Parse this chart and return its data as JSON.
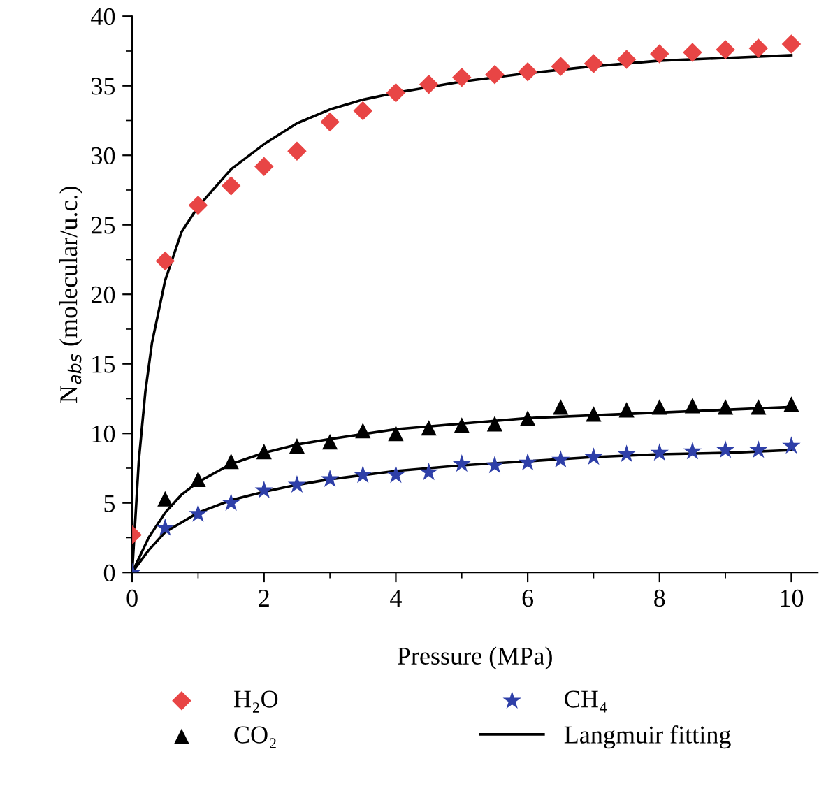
{
  "chart_data": {
    "type": "scatter",
    "xlabel": "Pressure (MPa)",
    "ylabel": "N$_{abs}$ (molecular/u.c.)",
    "x": [
      0,
      0.5,
      1,
      1.5,
      2,
      2.5,
      3,
      3.5,
      4,
      4.5,
      5,
      5.5,
      6,
      6.5,
      7,
      7.5,
      8,
      8.5,
      9,
      9.5,
      10
    ],
    "series": [
      {
        "name": "H₂O",
        "color": "#e84545",
        "marker": "diamond",
        "values": [
          2.7,
          22.4,
          26.4,
          27.8,
          29.2,
          30.3,
          32.4,
          33.2,
          34.5,
          35.1,
          35.6,
          35.8,
          36.0,
          36.4,
          36.6,
          36.9,
          37.3,
          37.4,
          37.6,
          37.7,
          38.0
        ]
      },
      {
        "name": "CO₂",
        "color": "#000000",
        "marker": "triangle",
        "values": [
          null,
          5.3,
          6.7,
          8.0,
          8.7,
          9.1,
          9.4,
          10.2,
          10.0,
          10.4,
          10.6,
          10.7,
          11.1,
          11.9,
          11.4,
          11.7,
          11.9,
          12.0,
          11.9,
          11.9,
          12.1
        ]
      },
      {
        "name": "CH₄",
        "color": "#2e3fa8",
        "marker": "star",
        "values": [
          0,
          3.2,
          4.2,
          5.0,
          5.9,
          6.3,
          6.7,
          7.0,
          7.0,
          7.2,
          7.8,
          7.7,
          7.9,
          8.1,
          8.3,
          8.5,
          8.6,
          8.7,
          8.8,
          8.8,
          9.1
        ]
      },
      {
        "name": "Langmuir fitting",
        "type": "line",
        "color": "#000000",
        "marker": "none",
        "line_style": "solid",
        "x": [
          0,
          0.1,
          0.2,
          0.3,
          0.5,
          0.75,
          1,
          1.5,
          2,
          2.5,
          3,
          3.5,
          4,
          5,
          6,
          7,
          8,
          9,
          10
        ],
        "values": [
          0,
          8,
          13,
          16.5,
          21,
          24.5,
          26.3,
          29,
          30.8,
          32.3,
          33.3,
          34,
          34.5,
          35.3,
          35.9,
          36.4,
          36.8,
          37.0,
          37.2
        ]
      },
      {
        "type": "line",
        "color": "#000000",
        "marker": "none",
        "line_style": "solid",
        "x": [
          0,
          0.25,
          0.5,
          0.75,
          1,
          1.5,
          2,
          2.5,
          3,
          4,
          5,
          6,
          7,
          8,
          9,
          10
        ],
        "values": [
          0,
          2.5,
          4.3,
          5.6,
          6.5,
          7.8,
          8.6,
          9.2,
          9.6,
          10.3,
          10.7,
          11.1,
          11.3,
          11.5,
          11.7,
          11.9
        ]
      },
      {
        "type": "line",
        "color": "#000000",
        "marker": "none",
        "line_style": "solid",
        "x": [
          0,
          0.25,
          0.5,
          1,
          1.5,
          2,
          2.5,
          3,
          4,
          5,
          6,
          7,
          8,
          9,
          10
        ],
        "values": [
          0,
          1.6,
          2.9,
          4.3,
          5.2,
          5.8,
          6.3,
          6.7,
          7.3,
          7.7,
          8.0,
          8.3,
          8.5,
          8.6,
          8.8
        ]
      }
    ],
    "xlim": [
      0,
      10.4
    ],
    "xticks": [
      0,
      2,
      4,
      6,
      8,
      10
    ],
    "ylim": [
      0,
      40
    ],
    "yticks": [
      0,
      5,
      10,
      15,
      20,
      25,
      30,
      35,
      40
    ],
    "grid": false,
    "legend": "bottom"
  }
}
